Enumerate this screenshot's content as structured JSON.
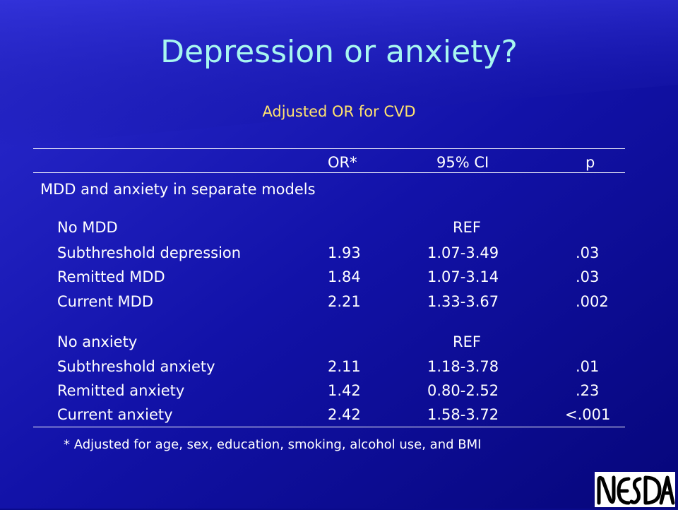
{
  "slide": {
    "title": "Depression or anxiety?",
    "subtitle": "Adjusted OR for CVD",
    "footnote": "* Adjusted for age, sex, education, smoking, alcohol use, and BMI",
    "logo_text": "NESDA"
  },
  "table": {
    "headers": [
      "OR*",
      "95% CI",
      "p"
    ],
    "section_title": "MDD and anxiety in separate models",
    "depression_rows": [
      {
        "label": "No MDD",
        "or": "",
        "ci": "REF",
        "p": ""
      },
      {
        "label": "Subthreshold depression",
        "or": "1.93",
        "ci": "1.07-3.49",
        "p": ".03"
      },
      {
        "label": "Remitted MDD",
        "or": "1.84",
        "ci": "1.07-3.14",
        "p": ".03"
      },
      {
        "label": "Current MDD",
        "or": "2.21",
        "ci": "1.33-3.67",
        "p": ".002"
      }
    ],
    "anxiety_rows": [
      {
        "label": "No anxiety",
        "or": "",
        "ci": "REF",
        "p": ""
      },
      {
        "label": "Subthreshold anxiety",
        "or": "2.11",
        "ci": "1.18-3.78",
        "p": ".01"
      },
      {
        "label": "Remitted anxiety",
        "or": "1.42",
        "ci": "0.80-2.52",
        "p": ".23"
      },
      {
        "label": "Current anxiety",
        "or": "2.42",
        "ci": "1.58-3.72",
        "p": "<.001"
      }
    ]
  },
  "colors": {
    "background": "#0a0a8c",
    "title": "#a8f6f0",
    "subtitle": "#ffe36e",
    "text": "#ffffff"
  }
}
